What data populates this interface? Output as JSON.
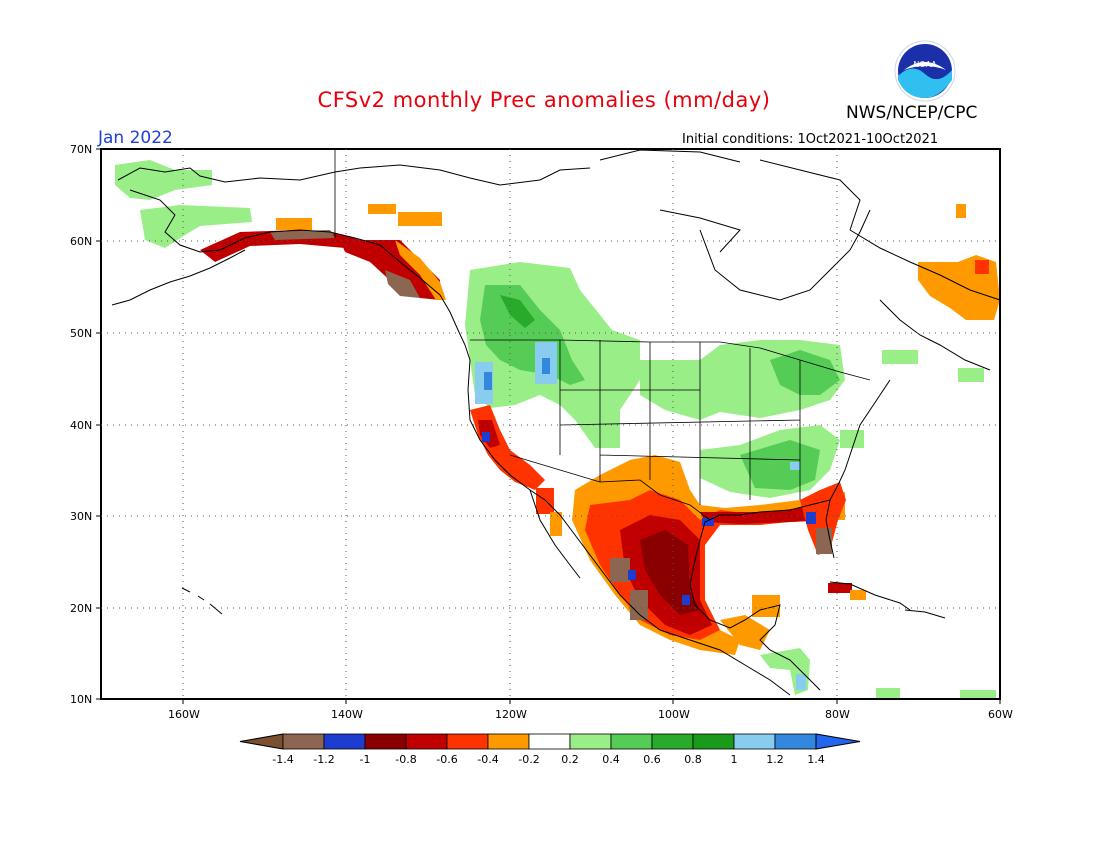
{
  "header": {
    "title": "CFSv2 monthly Prec anomalies (mm/day)",
    "agency": "NWS/NCEP/CPC",
    "month": "Jan 2022",
    "initial_conditions": "Initial conditions: 1Oct2021-10Oct2021",
    "logo_text": "NOAA"
  },
  "axes": {
    "lat_labels": [
      "70N",
      "60N",
      "50N",
      "40N",
      "30N",
      "20N",
      "10N"
    ],
    "lon_labels": [
      "160W",
      "140W",
      "120W",
      "100W",
      "80W",
      "60W"
    ]
  },
  "legend": {
    "ticks": [
      "-1.4",
      "-1.2",
      "-1",
      "-0.8",
      "-0.6",
      "-0.4",
      "-0.2",
      "0.2",
      "0.4",
      "0.6",
      "0.8",
      "1",
      "1.2",
      "1.4"
    ],
    "colors": {
      "lt_neg14": "#7a5030",
      "n14": "#8c6650",
      "n12": "#1e3cd0",
      "n10": "#8a0000",
      "n08": "#c00000",
      "n06": "#ff3300",
      "n04": "#ff9900",
      "n02": "#ffffff",
      "p02": "#99ee88",
      "p04": "#55cc55",
      "p06": "#2aaa2a",
      "p08": "#1a9a1a",
      "p10": "#88ccf0",
      "p12": "#3388dd",
      "gt_p14": "#2266ee"
    }
  }
}
